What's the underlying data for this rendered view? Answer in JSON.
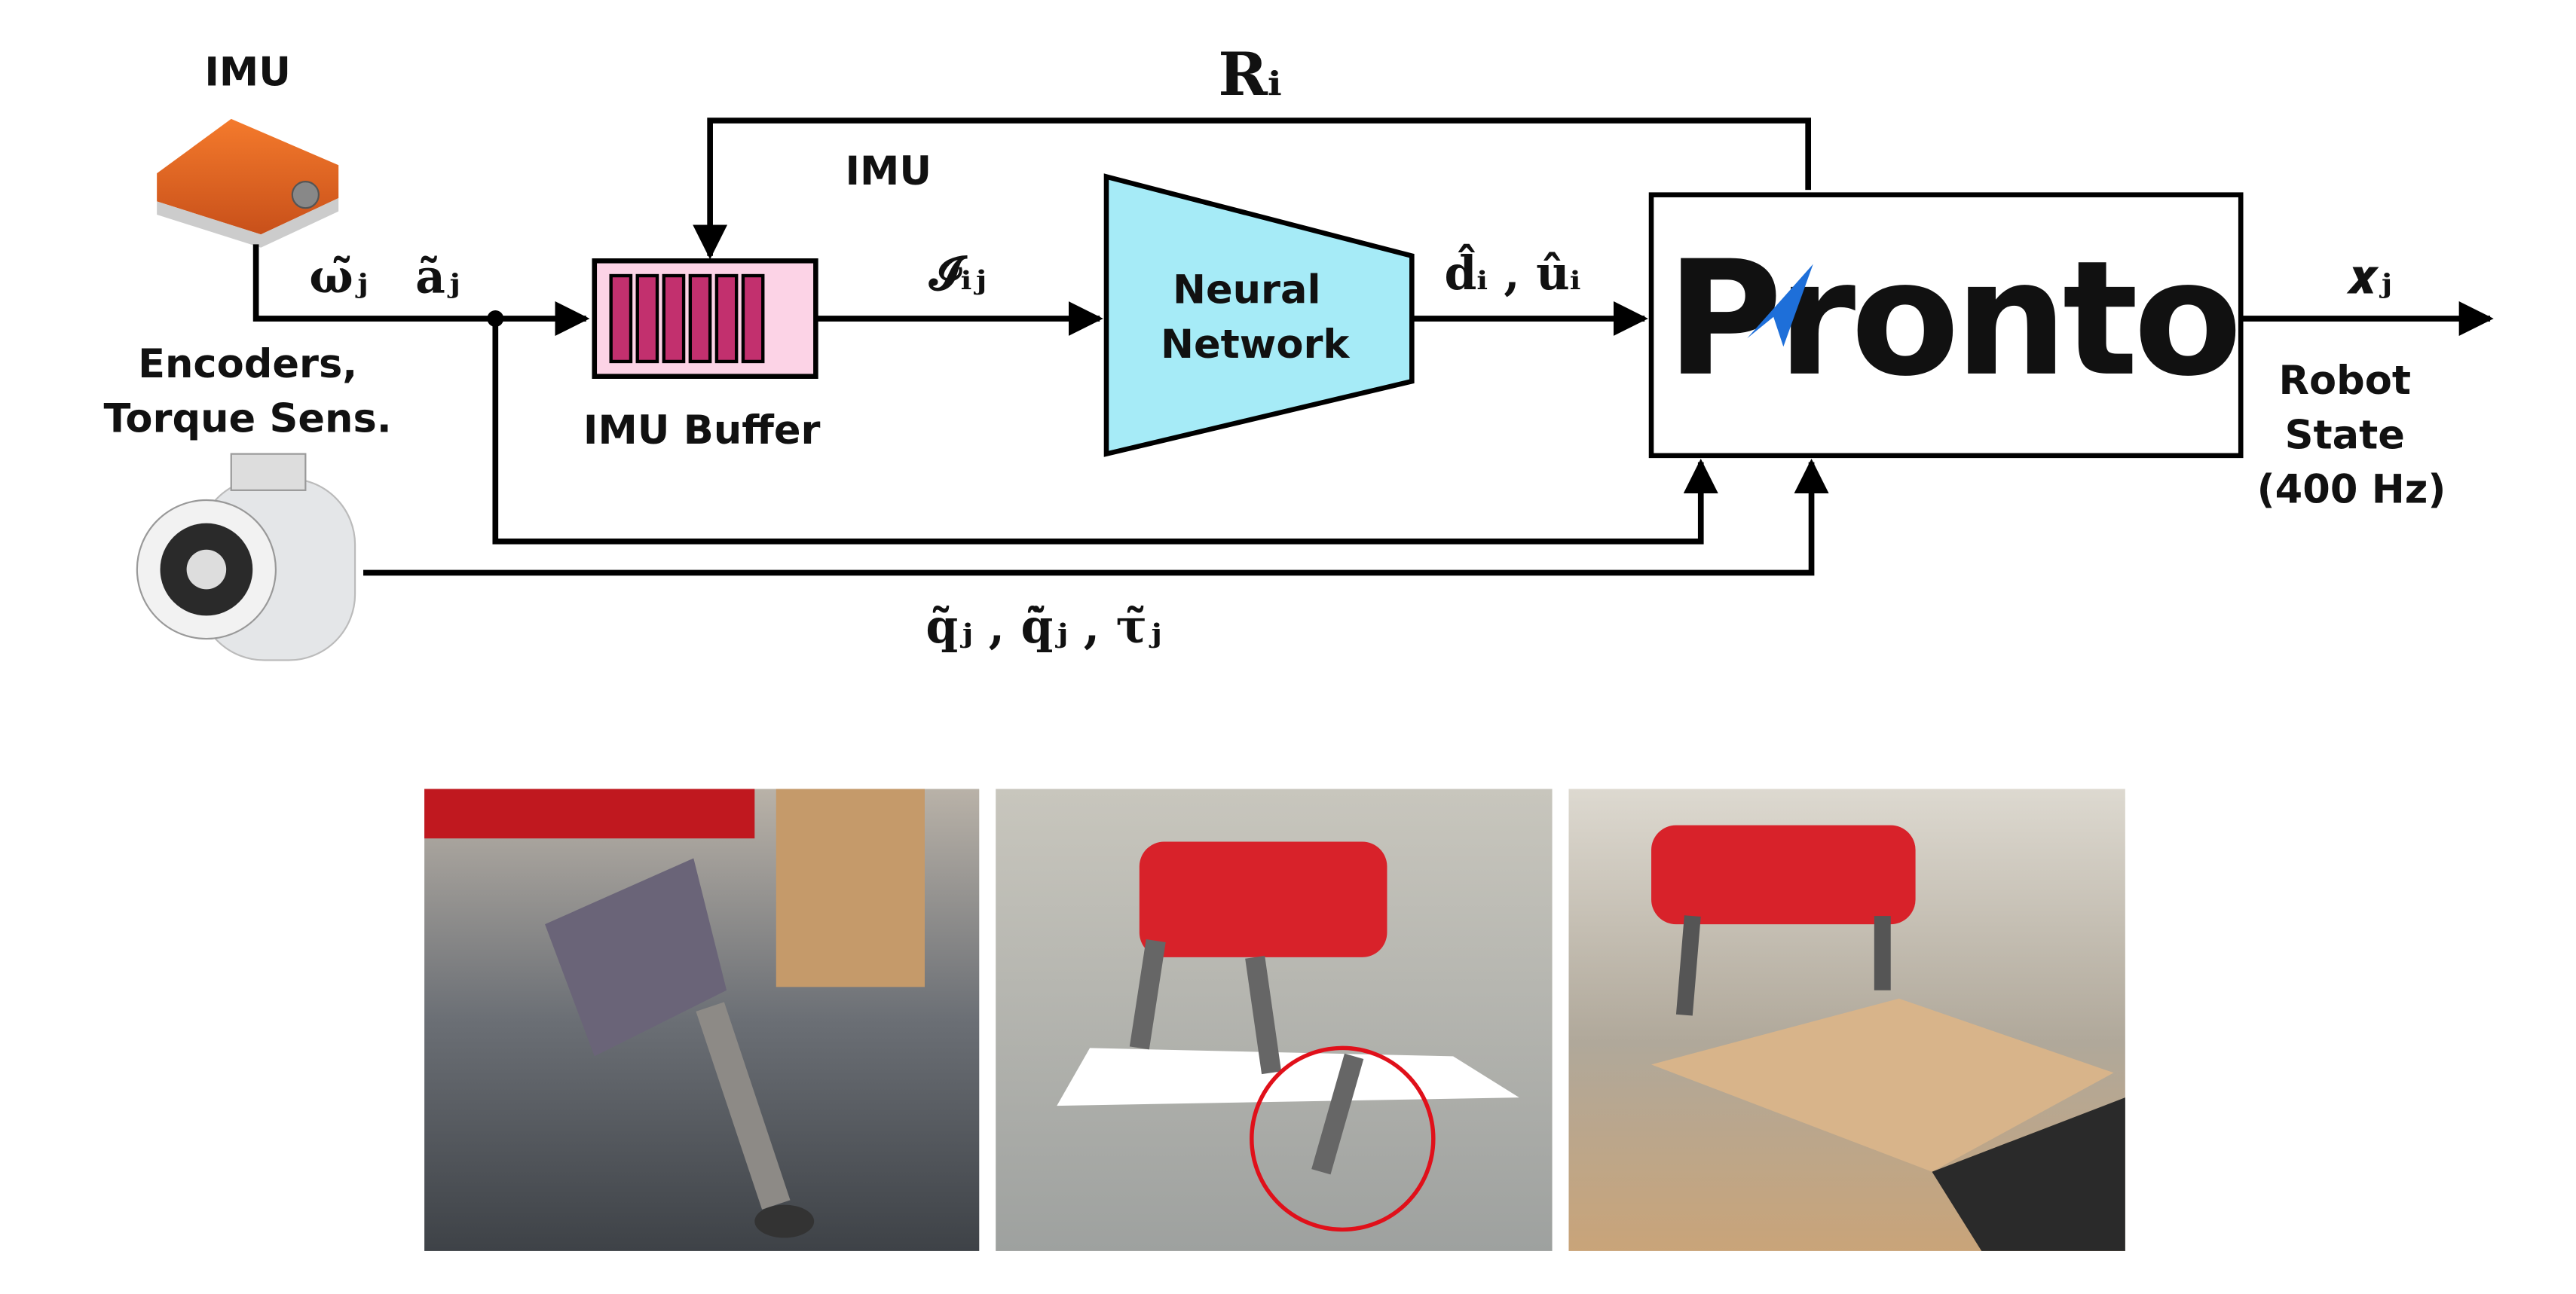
{
  "labels": {
    "imu_device": "IMU",
    "imu_feedback": "IMU",
    "gyro": "ω̃ⱼ",
    "accel": "ãⱼ",
    "encoders_line1": "Encoders,",
    "encoders_line2": "Torque Sens.",
    "imu_buffer": "IMU Buffer",
    "feedback": "Rᵢ",
    "buffer_output": "𝓘ᵢⱼ",
    "nn_line1": "Neural",
    "nn_line2": "Network",
    "nn_output": "d̂ᵢ , ûᵢ",
    "pronto": "Pronto",
    "output": "𝒙ⱼ",
    "state_line1": "Robot",
    "state_line2": "State",
    "state_line3": "(400 Hz)",
    "joint_signals": "q̃ⱼ , q̃̇ⱼ , τ̃ⱼ"
  }
}
